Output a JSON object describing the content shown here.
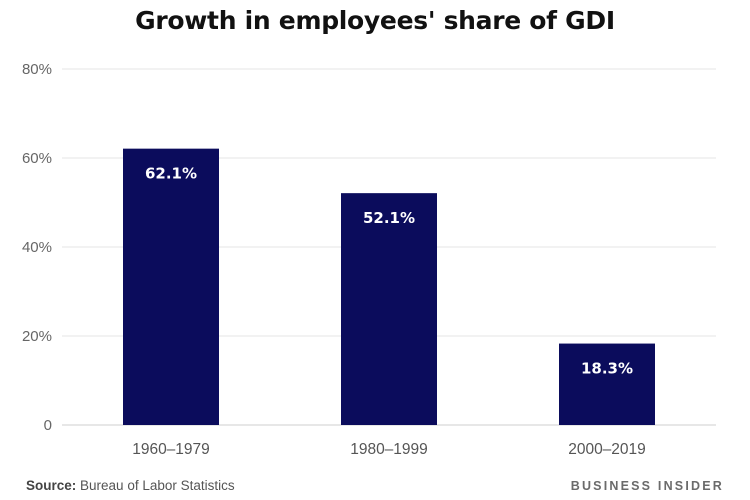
{
  "chart_data": {
    "type": "bar",
    "title": "Growth in employees' share of GDI",
    "xlabel": "",
    "ylabel": "",
    "categories": [
      "1960–1979",
      "1980–1999",
      "2000–2019"
    ],
    "values": [
      62.1,
      52.1,
      18.3
    ],
    "data_labels": [
      "62.1%",
      "52.1%",
      "18.3%"
    ],
    "ylim": [
      0,
      80
    ],
    "yticks": [
      0,
      20,
      40,
      60,
      80
    ],
    "ytick_labels": [
      "0",
      "20%",
      "40%",
      "60%",
      "80%"
    ],
    "grid": true,
    "legend": "none",
    "colors": {
      "bar": "#0b0c5c",
      "bar_label": "#ffffff",
      "grid": "#e6e6e6",
      "tick_text": "#666666"
    }
  },
  "footer": {
    "source_label": "Source:",
    "source_text": "Bureau of Labor Statistics",
    "brand": "BUSINESS INSIDER"
  }
}
